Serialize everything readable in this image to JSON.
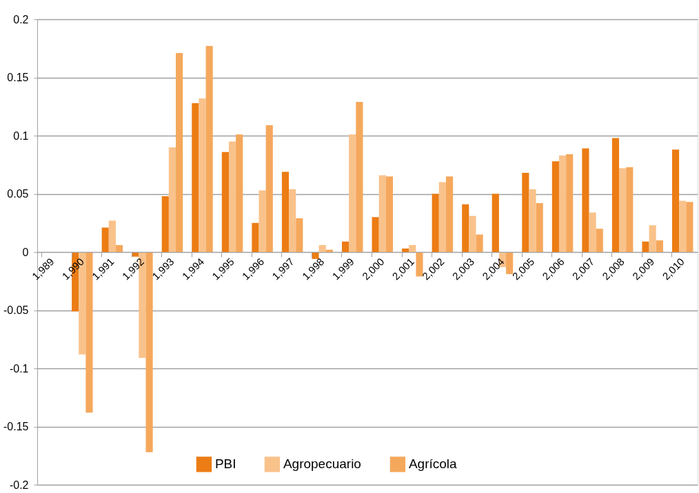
{
  "chart_data": {
    "type": "bar",
    "categories": [
      "1,989",
      "1,990",
      "1,991",
      "1,992",
      "1,993",
      "1,994",
      "1,995",
      "1,996",
      "1,997",
      "1,998",
      "1,999",
      "2,000",
      "2,001",
      "2,002",
      "2,003",
      "2,004",
      "2,005",
      "2,006",
      "2,007",
      "2,008",
      "2,009",
      "2,010"
    ],
    "series": [
      {
        "name": "PBI",
        "color": "#ec7c14",
        "values": [
          null,
          -0.051,
          0.021,
          -0.004,
          0.048,
          0.128,
          0.086,
          0.025,
          0.069,
          -0.006,
          0.009,
          0.03,
          0.003,
          0.05,
          0.041,
          0.05,
          0.068,
          0.078,
          0.089,
          0.098,
          0.009,
          0.088
        ]
      },
      {
        "name": "Agropecuario",
        "color": "#f9c28b",
        "values": [
          null,
          -0.088,
          0.027,
          -0.091,
          0.09,
          0.132,
          0.095,
          0.053,
          0.054,
          0.006,
          0.101,
          0.066,
          0.006,
          0.06,
          0.031,
          -0.013,
          0.054,
          0.083,
          0.034,
          0.072,
          0.023,
          0.044
        ]
      },
      {
        "name": "Agrícola",
        "color": "#f5a85c",
        "values": [
          null,
          -0.138,
          0.006,
          -0.172,
          0.171,
          0.177,
          0.101,
          0.109,
          0.029,
          0.002,
          0.129,
          0.065,
          -0.021,
          0.065,
          0.015,
          -0.019,
          0.042,
          0.084,
          0.02,
          0.073,
          0.01,
          0.043
        ]
      }
    ],
    "ylim": [
      -0.2,
      0.2
    ],
    "yticks": [
      -0.2,
      -0.15,
      -0.1,
      -0.05,
      0,
      0.05,
      0.1,
      0.15,
      0.2
    ],
    "grid": "y",
    "legend": "bottom"
  }
}
